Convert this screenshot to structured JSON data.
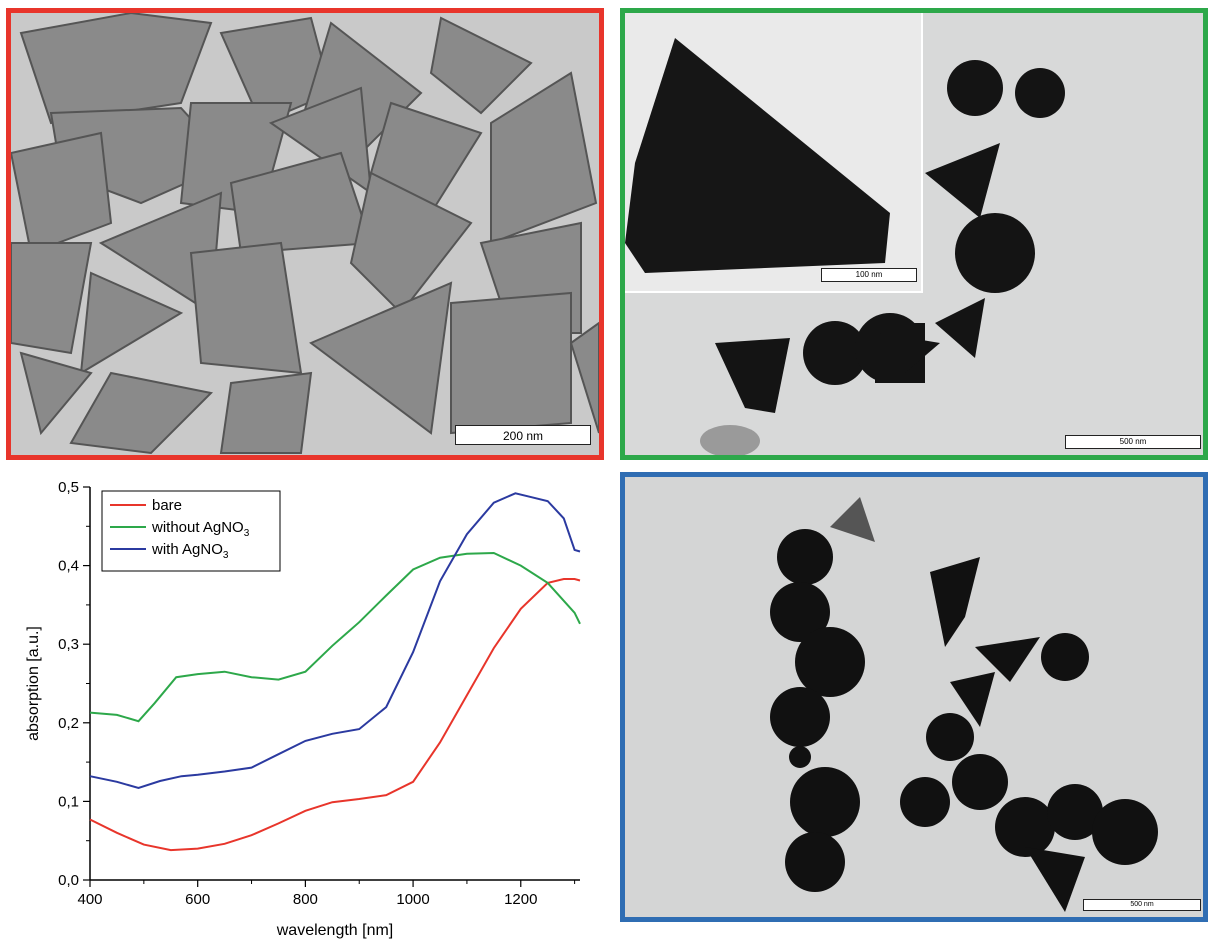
{
  "panels": {
    "a": {
      "border_color": "#e8352b",
      "scale_bar": "200 nm"
    },
    "b": {
      "border_color": "#2da84a",
      "scale_bar": "500 nm",
      "inset_scale_bar": "100 nm"
    },
    "c": {
      "border_color": "#2f6db3",
      "scale_bar": "500 nm"
    }
  },
  "chart_data": {
    "type": "line",
    "title": "",
    "xlabel": "wavelength [nm]",
    "ylabel": "absorption [a.u.]",
    "xlim": [
      400,
      1310
    ],
    "ylim": [
      0.0,
      0.5
    ],
    "xticks": [
      "400",
      "600",
      "800",
      "1000",
      "1200"
    ],
    "yticks": [
      "0,0",
      "0,1",
      "0,2",
      "0,3",
      "0,4",
      "0,5"
    ],
    "legend_position": "top-left",
    "series": [
      {
        "name": "bare",
        "color": "#e8352b",
        "x": [
          400,
          450,
          500,
          550,
          600,
          650,
          700,
          750,
          800,
          850,
          900,
          950,
          1000,
          1050,
          1100,
          1150,
          1200,
          1250,
          1280,
          1300,
          1310
        ],
        "y": [
          0.077,
          0.06,
          0.045,
          0.038,
          0.04,
          0.046,
          0.057,
          0.072,
          0.088,
          0.099,
          0.103,
          0.108,
          0.125,
          0.175,
          0.235,
          0.295,
          0.345,
          0.378,
          0.383,
          0.383,
          0.381
        ]
      },
      {
        "name": "without AgNO3",
        "color": "#2da84a",
        "x": [
          400,
          450,
          490,
          520,
          560,
          600,
          650,
          700,
          750,
          800,
          850,
          900,
          950,
          1000,
          1050,
          1100,
          1150,
          1200,
          1250,
          1300,
          1310
        ],
        "y": [
          0.213,
          0.21,
          0.202,
          0.225,
          0.258,
          0.262,
          0.265,
          0.258,
          0.255,
          0.265,
          0.298,
          0.328,
          0.362,
          0.395,
          0.41,
          0.415,
          0.416,
          0.4,
          0.378,
          0.34,
          0.326
        ]
      },
      {
        "name": "with AgNO3",
        "color": "#2b3aa0",
        "x": [
          400,
          450,
          490,
          530,
          570,
          600,
          650,
          700,
          750,
          800,
          850,
          900,
          950,
          1000,
          1050,
          1100,
          1150,
          1190,
          1220,
          1250,
          1280,
          1300,
          1310
        ],
        "y": [
          0.132,
          0.125,
          0.117,
          0.126,
          0.132,
          0.134,
          0.138,
          0.143,
          0.16,
          0.177,
          0.186,
          0.192,
          0.22,
          0.29,
          0.38,
          0.44,
          0.48,
          0.492,
          0.487,
          0.482,
          0.46,
          0.42,
          0.418
        ]
      }
    ]
  }
}
